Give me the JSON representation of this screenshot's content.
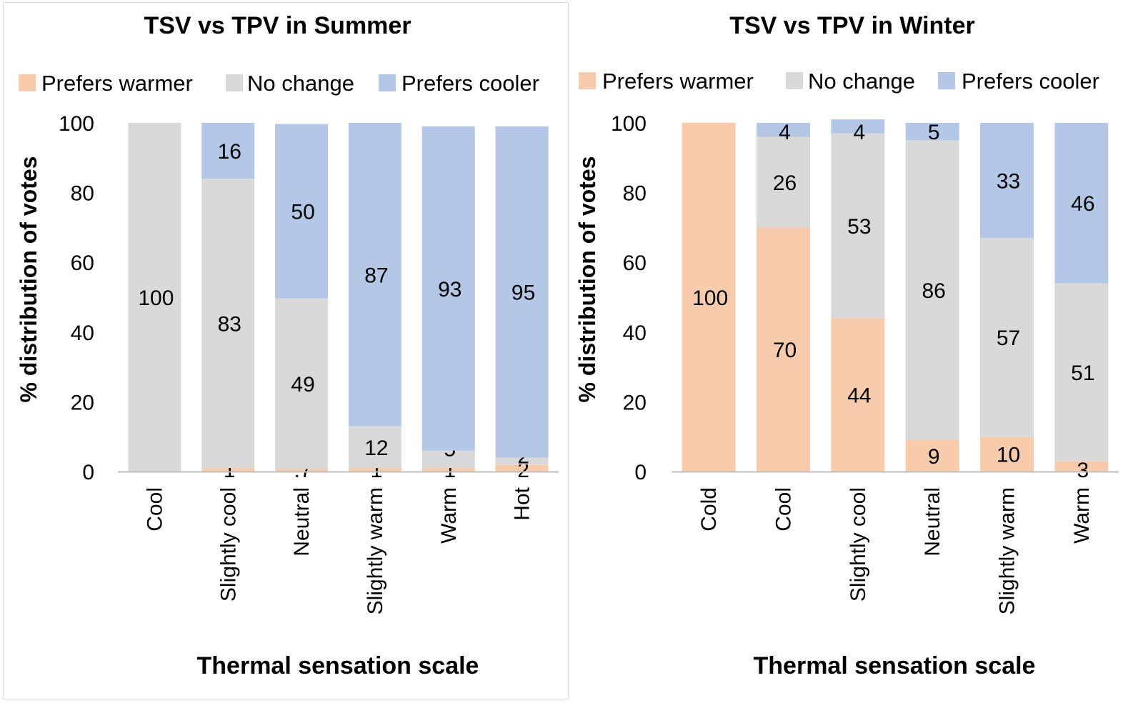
{
  "legend_labels": [
    "Prefers warmer",
    "No change",
    "Prefers cooler"
  ],
  "colors": {
    "warmer": "#f8cbad",
    "nochange": "#d9d9d9",
    "cooler": "#b4c7e7",
    "axis": "#bfbfbf",
    "text": "#000000"
  },
  "chart_data": [
    {
      "type": "bar",
      "stacked": true,
      "title": "TSV vs TPV in Summer",
      "xlabel": "Thermal sensation scale",
      "ylabel": "% distribution of votes",
      "ylim": [
        0,
        100
      ],
      "yticks": [
        0,
        20,
        40,
        60,
        80,
        100
      ],
      "legend_position": "top",
      "categories": [
        "Cool",
        "Slightly cool",
        "Neutral",
        "Slightly warm",
        "Warm",
        "Hot"
      ],
      "series": [
        {
          "name": "Prefers warmer",
          "color": "#f8cbad",
          "values": [
            0,
            1,
            0.7,
            1,
            1,
            2
          ],
          "labels": [
            "",
            "1",
            ".7",
            "1",
            "1",
            "2"
          ]
        },
        {
          "name": "No change",
          "color": "#d9d9d9",
          "values": [
            100,
            83,
            49,
            12,
            5,
            2
          ],
          "labels": [
            "100",
            "83",
            "49",
            "12",
            "5",
            "2"
          ]
        },
        {
          "name": "Prefers cooler",
          "color": "#b4c7e7",
          "values": [
            0,
            16,
            50,
            87,
            93,
            95
          ],
          "labels": [
            "",
            "16",
            "50",
            "87",
            "93",
            "95"
          ]
        }
      ]
    },
    {
      "type": "bar",
      "stacked": true,
      "title": "TSV vs TPV in Winter",
      "xlabel": "Thermal sensation scale",
      "ylabel": "% distribution of votes",
      "ylim": [
        0,
        100
      ],
      "yticks": [
        0,
        20,
        40,
        60,
        80,
        100
      ],
      "legend_position": "top",
      "categories": [
        "Cold",
        "Cool",
        "Slightly cool",
        "Neutral",
        "Slightly warm",
        "Warm"
      ],
      "series": [
        {
          "name": "Prefers warmer",
          "color": "#f8cbad",
          "values": [
            100,
            70,
            44,
            9,
            10,
            3
          ],
          "labels": [
            "100",
            "70",
            "44",
            "9",
            "10",
            "3"
          ]
        },
        {
          "name": "No change",
          "color": "#d9d9d9",
          "values": [
            0,
            26,
            53,
            86,
            57,
            51
          ],
          "labels": [
            "",
            "26",
            "53",
            "86",
            "57",
            "51"
          ]
        },
        {
          "name": "Prefers cooler",
          "color": "#b4c7e7",
          "values": [
            0,
            4,
            4,
            5,
            33,
            46
          ],
          "labels": [
            "",
            "4",
            "4",
            "5",
            "33",
            "46"
          ]
        }
      ]
    }
  ]
}
